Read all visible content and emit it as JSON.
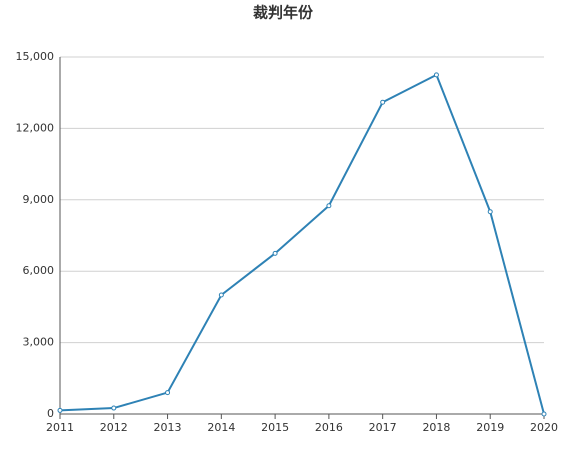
{
  "chart_data": {
    "type": "line",
    "title": "裁判年份",
    "x": [
      2011,
      2012,
      2013,
      2014,
      2015,
      2016,
      2017,
      2018,
      2019,
      2020
    ],
    "values": [
      150,
      250,
      900,
      5000,
      6750,
      8750,
      13100,
      14250,
      8500,
      0
    ],
    "color": "#2e82b5",
    "xlim": [
      2011,
      2020
    ],
    "xticks": [
      2011,
      2012,
      2013,
      2014,
      2015,
      2016,
      2017,
      2018,
      2019,
      2020
    ],
    "ylim": [
      0,
      15000
    ],
    "yticks": [
      0,
      {
        "value": 3000,
        "label": "3,000"
      },
      {
        "value": 6000,
        "label": "6,000"
      },
      {
        "value": 9000,
        "label": "9,000"
      },
      {
        "value": 12000,
        "label": "12,000"
      },
      {
        "value": 15000,
        "label": "15,000"
      }
    ],
    "grid": true
  }
}
